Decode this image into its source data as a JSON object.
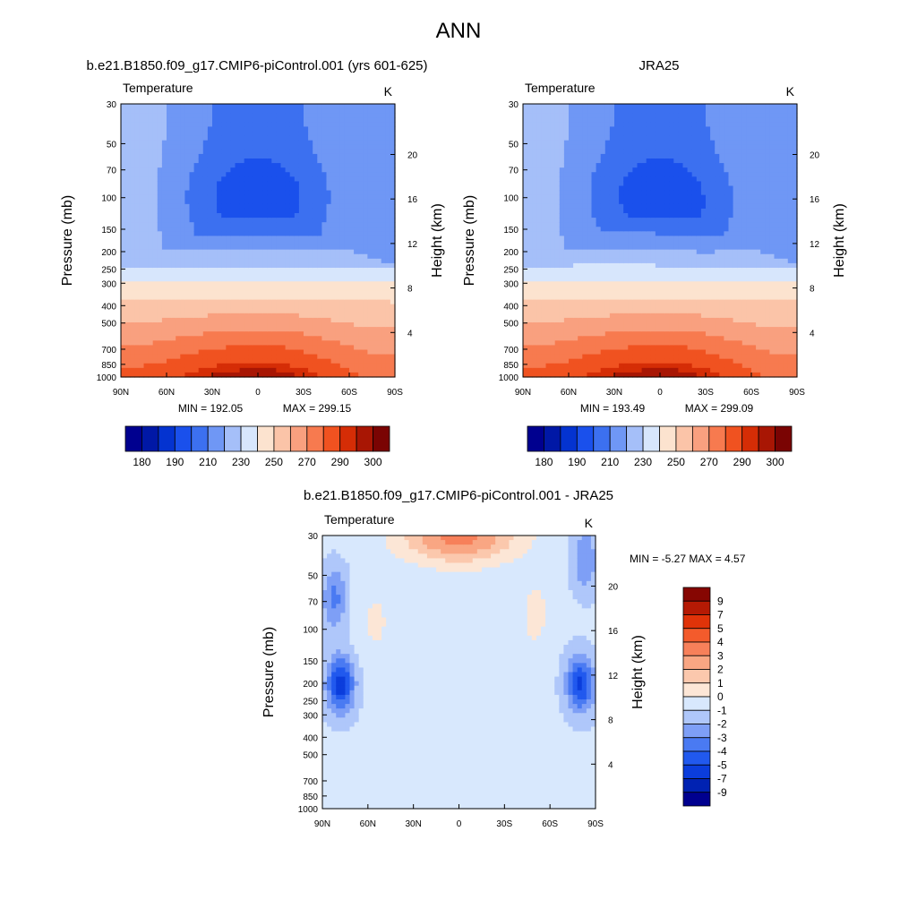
{
  "figure": {
    "title": "ANN",
    "left_title": "b.e21.B1850.f09_g17.CMIP6-piControl.001 (yrs 601-625)",
    "right_title": "JRA25",
    "diff_title": "b.e21.B1850.f09_g17.CMIP6-piControl.001 - JRA25"
  },
  "chart_data": [
    {
      "type": "heatmap",
      "title": "b.e21.B1850.f09_g17.CMIP6-piControl.001 (yrs 601-625)",
      "variable": "Temperature",
      "units": "K",
      "xlabel": "",
      "ylabel": "Pressure (mb)",
      "ylabel_right": "Height (km)",
      "x_ticks": [
        "90N",
        "60N",
        "30N",
        "0",
        "30S",
        "60S",
        "90S"
      ],
      "x_values": [
        90,
        60,
        30,
        0,
        -30,
        -60,
        -90
      ],
      "y_ticks": [
        30,
        50,
        70,
        100,
        150,
        200,
        250,
        300,
        400,
        500,
        700,
        850,
        1000
      ],
      "height_ticks": [
        4,
        8,
        12,
        16,
        20
      ],
      "min_label": "MIN = 192.05",
      "max_label": "MAX = 299.15",
      "min": 192.05,
      "max": 299.15,
      "colorbar_labels": [
        "180",
        "190",
        "210",
        "230",
        "250",
        "270",
        "290",
        "300"
      ]
    },
    {
      "type": "heatmap",
      "title": "JRA25",
      "variable": "Temperature",
      "units": "K",
      "xlabel": "",
      "ylabel": "Pressure (mb)",
      "ylabel_right": "Height (km)",
      "x_ticks": [
        "90N",
        "60N",
        "30N",
        "0",
        "30S",
        "60S",
        "90S"
      ],
      "x_values": [
        90,
        60,
        30,
        0,
        -30,
        -60,
        -90
      ],
      "y_ticks": [
        30,
        50,
        70,
        100,
        150,
        200,
        250,
        300,
        400,
        500,
        700,
        850,
        1000
      ],
      "height_ticks": [
        4,
        8,
        12,
        16,
        20
      ],
      "min_label": "MIN = 193.49",
      "max_label": "MAX = 299.09",
      "min": 193.49,
      "max": 299.09,
      "colorbar_labels": [
        "180",
        "190",
        "210",
        "230",
        "250",
        "270",
        "290",
        "300"
      ]
    },
    {
      "type": "heatmap",
      "title": "b.e21.B1850.f09_g17.CMIP6-piControl.001 - JRA25",
      "variable": "Temperature",
      "units": "K",
      "xlabel": "",
      "ylabel": "Pressure (mb)",
      "ylabel_right": "Height (km)",
      "x_ticks": [
        "90N",
        "60N",
        "30N",
        "0",
        "30S",
        "60S",
        "90S"
      ],
      "x_values": [
        90,
        60,
        30,
        0,
        -30,
        -60,
        -90
      ],
      "y_ticks": [
        30,
        50,
        70,
        100,
        150,
        200,
        250,
        300,
        400,
        500,
        700,
        850,
        1000
      ],
      "height_ticks": [
        4,
        8,
        12,
        16,
        20
      ],
      "minmax_label": "MIN =  -5.27  MAX =   4.57",
      "min": -5.27,
      "max": 4.57,
      "colorbar_labels": [
        "9",
        "7",
        "5",
        "4",
        "3",
        "2",
        "1",
        "0",
        "-1",
        "-2",
        "-3",
        "-4",
        "-5",
        "-7",
        "-9"
      ]
    }
  ],
  "colors": {
    "abs_scale": [
      "#00008f",
      "#0018a6",
      "#0433d0",
      "#1a50ec",
      "#3c70f0",
      "#6f97f5",
      "#a5bff9",
      "#d7e6fc",
      "#fce3cf",
      "#fbc4a8",
      "#f9a07f",
      "#f77a4f",
      "#f05220",
      "#d52d06",
      "#a81604",
      "#7a0403"
    ],
    "diff_scale": [
      "#00008f",
      "#0022b2",
      "#0b3ddc",
      "#2159ee",
      "#4a7af2",
      "#7e9ff6",
      "#afc7fa",
      "#d8e8fd",
      "#fce6d6",
      "#fbc8ad",
      "#f9a683",
      "#f7805a",
      "#f35b2c",
      "#e03309",
      "#b51a04",
      "#860602"
    ]
  }
}
